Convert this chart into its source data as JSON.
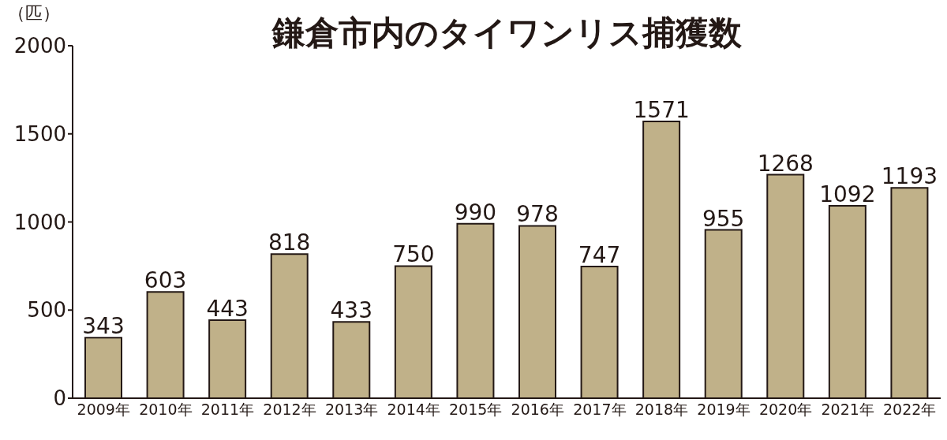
{
  "chart_data": {
    "type": "bar",
    "title": "鎌倉市内のタイワンリス捕獲数",
    "ylabel": "（匹）",
    "categories": [
      "2009年",
      "2010年",
      "2011年",
      "2012年",
      "2013年",
      "2014年",
      "2015年",
      "2016年",
      "2017年",
      "2018年",
      "2019年",
      "2020年",
      "2021年",
      "2022年"
    ],
    "values": [
      343,
      603,
      443,
      818,
      433,
      750,
      990,
      978,
      747,
      1571,
      955,
      1268,
      1092,
      1193
    ],
    "color": "#c0b189",
    "ylim": [
      0,
      2000
    ],
    "yticks": [
      0,
      500,
      1000,
      1500,
      2000
    ],
    "data_labels": true
  }
}
